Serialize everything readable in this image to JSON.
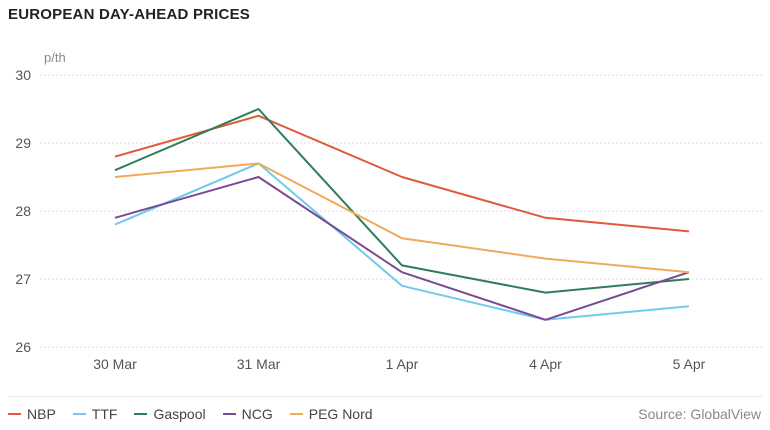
{
  "chart_data": {
    "type": "line",
    "title": "EUROPEAN DAY-AHEAD PRICES",
    "unit_label": "p/th",
    "categories": [
      "30 Mar",
      "31 Mar",
      "1 Apr",
      "4 Apr",
      "5 Apr"
    ],
    "ylim": [
      26,
      30
    ],
    "yticks": [
      "26",
      "27",
      "28",
      "29",
      "30"
    ],
    "grid": true,
    "legend_position": "bottom-left",
    "source": "Source: GlobalView",
    "series": [
      {
        "name": "NBP",
        "color": "#e05a3c",
        "values": [
          28.8,
          29.4,
          28.5,
          27.9,
          27.7
        ]
      },
      {
        "name": "TTF",
        "color": "#6fcbea",
        "values": [
          27.8,
          28.7,
          26.9,
          26.4,
          26.6
        ]
      },
      {
        "name": "Gaspool",
        "color": "#2e7d5b",
        "values": [
          28.6,
          29.5,
          27.2,
          26.8,
          27.0
        ]
      },
      {
        "name": "NCG",
        "color": "#7a4a95",
        "values": [
          27.9,
          28.5,
          27.1,
          26.4,
          27.1
        ]
      },
      {
        "name": "PEG Nord",
        "color": "#f0aa58",
        "values": [
          28.5,
          28.7,
          27.6,
          27.3,
          27.1
        ]
      }
    ]
  }
}
